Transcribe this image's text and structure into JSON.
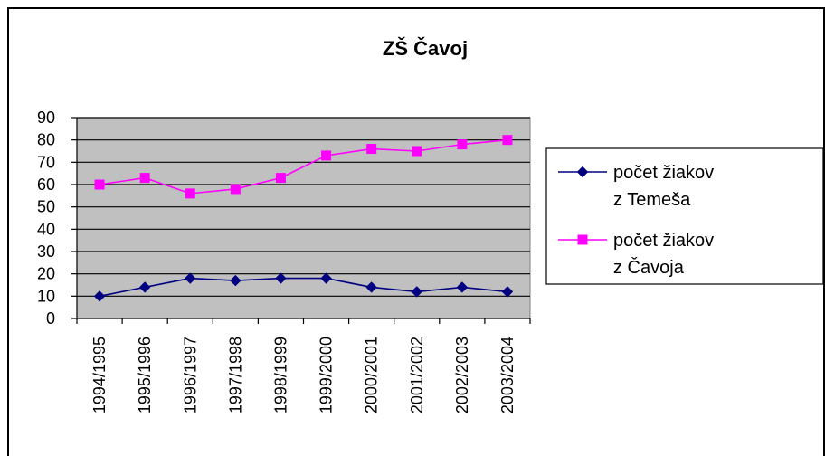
{
  "chart_data": {
    "type": "line",
    "title": "ZŠ Čavoj",
    "categories": [
      "1994/1995",
      "1995/1996",
      "1996/1997",
      "1997/1998",
      "1998/1999",
      "1999/2000",
      "2000/2001",
      "2001/2002",
      "2002/2003",
      "2003/2004"
    ],
    "ylim": [
      0,
      90
    ],
    "yticks": [
      "0",
      "10",
      "20",
      "30",
      "40",
      "50",
      "60",
      "70",
      "80",
      "90"
    ],
    "grid": true,
    "legend_position": "right",
    "series": [
      {
        "name_lines": [
          "počet žiakov",
          "z Temeša"
        ],
        "values": [
          10,
          14,
          18,
          17,
          18,
          18,
          14,
          12,
          14,
          12
        ],
        "color": "#000080",
        "marker": "diamond"
      },
      {
        "name_lines": [
          "počet žiakov",
          "z Čavoja"
        ],
        "values": [
          60,
          63,
          56,
          58,
          63,
          73,
          76,
          75,
          78,
          80
        ],
        "color": "#ff00ff",
        "marker": "square"
      }
    ]
  }
}
